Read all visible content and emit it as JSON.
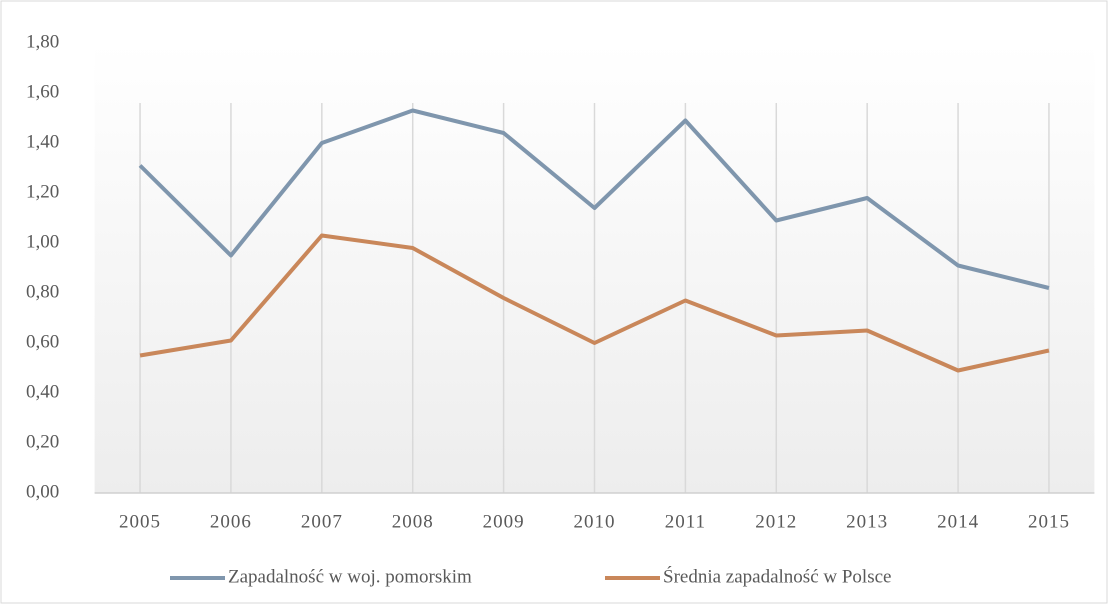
{
  "chart_data": {
    "type": "line",
    "categories": [
      "2005",
      "2006",
      "2007",
      "2008",
      "2009",
      "2010",
      "2011",
      "2012",
      "2013",
      "2014",
      "2015"
    ],
    "series": [
      {
        "name": "Zapadalność w woj. pomorskim",
        "color": "#7f96ad",
        "values": [
          1.31,
          0.95,
          1.4,
          1.53,
          1.44,
          1.14,
          1.49,
          1.09,
          1.18,
          0.91,
          0.82
        ]
      },
      {
        "name": "Średnia zapadalność w Polsce",
        "color": "#c9875a",
        "values": [
          0.55,
          0.61,
          1.03,
          0.98,
          0.78,
          0.6,
          0.77,
          0.63,
          0.65,
          0.49,
          0.57
        ]
      }
    ],
    "ylim": [
      0,
      1.8
    ],
    "yticks": [
      {
        "value": 0,
        "label": "0,00"
      },
      {
        "value": 0.2,
        "label": "0,20"
      },
      {
        "value": 0.4,
        "label": "0,40"
      },
      {
        "value": 0.6,
        "label": "0,60"
      },
      {
        "value": 0.8,
        "label": "0,80"
      },
      {
        "value": 1.0,
        "label": "1,00"
      },
      {
        "value": 1.2,
        "label": "1,20"
      },
      {
        "value": 1.4,
        "label": "1,40"
      },
      {
        "value": 1.6,
        "label": "1,60"
      },
      {
        "value": 1.8,
        "label": "1,80"
      }
    ],
    "legend": "bottom"
  }
}
